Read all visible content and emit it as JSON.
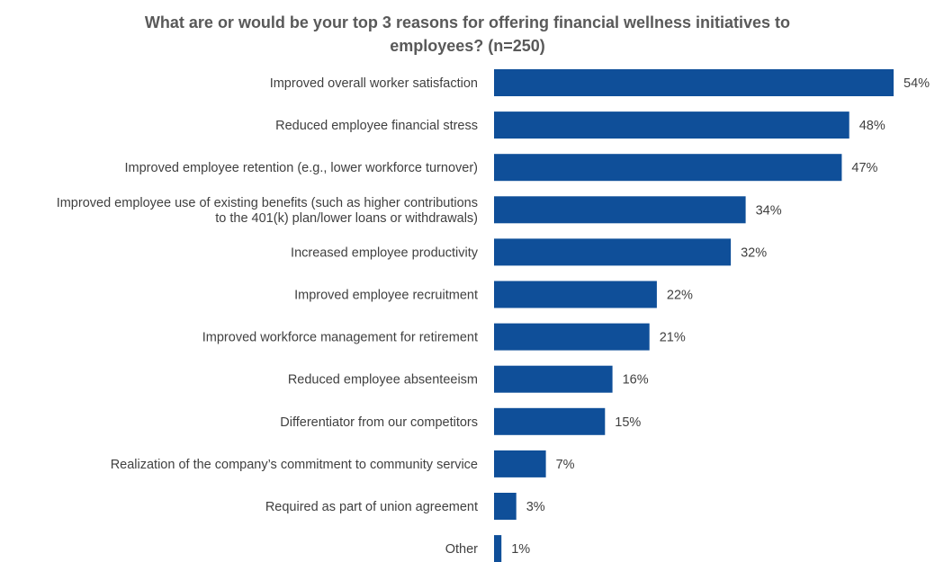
{
  "chart_data": {
    "type": "bar",
    "orientation": "horizontal",
    "title": "What are or would be your top 3 reasons for offering financial wellness initiatives to employees? (n=250)",
    "title_lines": [
      "What are or would be your top 3 reasons for offering financial wellness initiatives to",
      "employees? (n=250)"
    ],
    "categories": [
      [
        "Improved overall worker satisfaction"
      ],
      [
        "Reduced employee financial stress"
      ],
      [
        "Improved employee retention (e.g., lower workforce turnover)"
      ],
      [
        "Improved employee use of existing benefits (such as higher contributions",
        "to the 401(k) plan/lower loans or withdrawals)"
      ],
      [
        "Increased employee productivity"
      ],
      [
        "Improved employee recruitment"
      ],
      [
        "Improved workforce management for retirement"
      ],
      [
        "Reduced employee absenteeism"
      ],
      [
        "Differentiator from our competitors"
      ],
      [
        "Realization of the company’s commitment to community service"
      ],
      [
        "Required as part of union agreement"
      ],
      [
        "Other"
      ]
    ],
    "values": [
      54,
      48,
      47,
      34,
      32,
      22,
      21,
      16,
      15,
      7,
      3,
      1
    ],
    "value_labels": [
      "54%",
      "48%",
      "47%",
      "34%",
      "32%",
      "22%",
      "21%",
      "16%",
      "15%",
      "7%",
      "3%",
      "1%"
    ],
    "xlim": [
      0,
      54
    ],
    "grid": false,
    "legend": "none",
    "bar_color": "#0F4F99",
    "text_color": "#404040",
    "title_color": "#595959"
  }
}
